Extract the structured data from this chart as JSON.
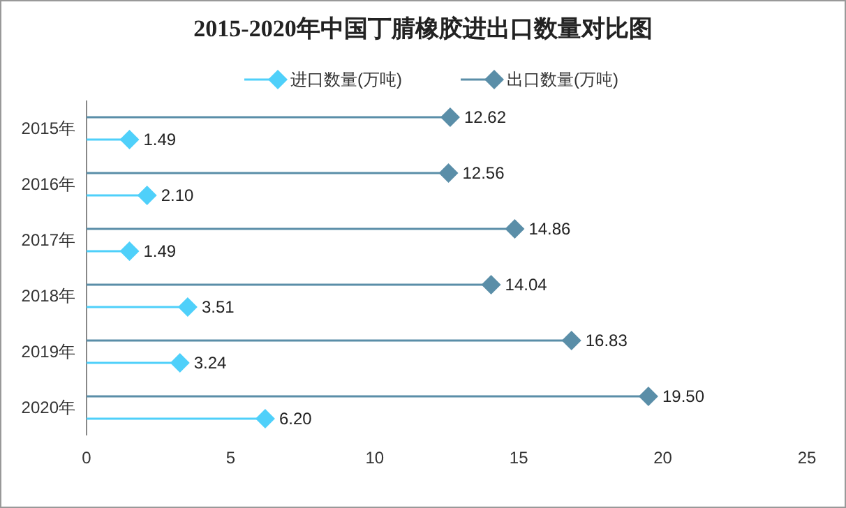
{
  "chart_data": {
    "type": "lollipop",
    "title": "2015-2020年中国丁腈橡胶进出口数量对比图",
    "orientation": "horizontal",
    "categories": [
      "2015年",
      "2016年",
      "2017年",
      "2018年",
      "2019年",
      "2020年"
    ],
    "series": [
      {
        "name": "进口数量(万吨)",
        "color": "#4fd0fa",
        "values": [
          1.49,
          2.1,
          1.49,
          3.51,
          3.24,
          6.2
        ],
        "value_labels": [
          "1.49",
          "2.10",
          "1.49",
          "3.51",
          "3.24",
          "6.20"
        ]
      },
      {
        "name": "出口数量(万吨)",
        "color": "#5a8ea8",
        "values": [
          12.62,
          12.56,
          14.86,
          14.04,
          16.83,
          19.5
        ],
        "value_labels": [
          "12.62",
          "12.56",
          "14.86",
          "14.04",
          "16.83",
          "19.50"
        ]
      }
    ],
    "xlim": [
      0,
      25
    ],
    "xticks": [
      0,
      5,
      10,
      15,
      20,
      25
    ],
    "grid": false,
    "legend": "top",
    "marker": "diamond",
    "line_style": "solid"
  }
}
